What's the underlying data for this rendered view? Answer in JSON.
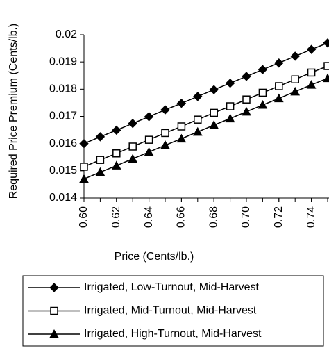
{
  "chart_data": {
    "type": "line",
    "xlabel": "Price (Cents/lb.)",
    "ylabel": "Required Price Premium (Cents/lb.)",
    "x": [
      0.6,
      0.61,
      0.62,
      0.63,
      0.64,
      0.65,
      0.66,
      0.67,
      0.68,
      0.69,
      0.7,
      0.71,
      0.72,
      0.73,
      0.74,
      0.75
    ],
    "xlim": [
      0.6,
      0.75
    ],
    "xticks": [
      {
        "value": 0.6,
        "label": "0.60"
      },
      {
        "value": 0.62,
        "label": "0.62"
      },
      {
        "value": 0.64,
        "label": "0.64"
      },
      {
        "value": 0.66,
        "label": "0.66"
      },
      {
        "value": 0.68,
        "label": "0.68"
      },
      {
        "value": 0.7,
        "label": "0.70"
      },
      {
        "value": 0.72,
        "label": "0.72"
      },
      {
        "value": 0.74,
        "label": "0.74"
      }
    ],
    "ylim": [
      0.014,
      0.02
    ],
    "yticks": [
      0.014,
      0.015,
      0.016,
      0.017,
      0.018,
      0.019,
      0.02
    ],
    "legend": "bottom",
    "series": [
      {
        "name": "Irrigated, Low-Turnout, Mid-Harvest",
        "color": "#000000",
        "marker": "diamond",
        "values": [
          0.016,
          0.01625,
          0.01649,
          0.01674,
          0.01699,
          0.01724,
          0.01748,
          0.01773,
          0.01798,
          0.01822,
          0.01847,
          0.01872,
          0.01896,
          0.01921,
          0.01946,
          0.0197
        ]
      },
      {
        "name": "Irrigated, Mid-Turnout, Mid-Harvest",
        "color": "#000000",
        "marker": "square",
        "values": [
          0.01515,
          0.0154,
          0.01564,
          0.01589,
          0.01614,
          0.01639,
          0.01663,
          0.01688,
          0.01713,
          0.01737,
          0.01762,
          0.01787,
          0.01811,
          0.01836,
          0.01861,
          0.01885
        ]
      },
      {
        "name": "Irrigated, High-Turnout, Mid-Harvest",
        "color": "#000000",
        "marker": "triangle",
        "values": [
          0.0147,
          0.01495,
          0.01519,
          0.01544,
          0.01569,
          0.01594,
          0.01618,
          0.01643,
          0.01668,
          0.01692,
          0.01717,
          0.01742,
          0.01766,
          0.01791,
          0.01816,
          0.0184
        ]
      }
    ]
  }
}
